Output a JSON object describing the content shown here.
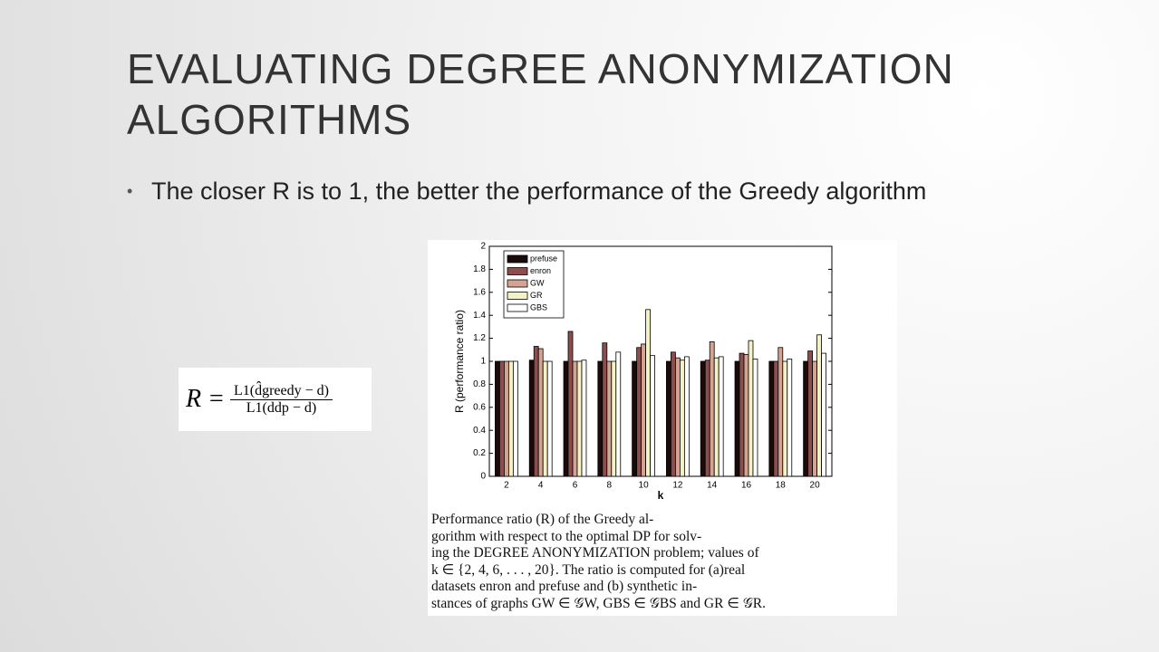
{
  "slide_title": "EVALUATING DEGREE ANONYMIZATION ALGORITHMS",
  "bullet": "The closer R is to 1, the better the performance of the Greedy algorithm",
  "formula": {
    "lhs": "R =",
    "numerator": "L1(d̂greedy − d)",
    "denominator": "L1(ddp − d)"
  },
  "caption_lines": [
    "Performance ratio (R) of the Greedy al-",
    "gorithm with respect to the optimal DP for solv-",
    "ing the DEGREE ANONYMIZATION problem; values of",
    "k ∈ {2, 4, 6, . . . , 20}. The ratio is computed for (a)real",
    "datasets enron and prefuse and (b) synthetic in-",
    "stances of graphs GW ∈ 𝒢W, GBS ∈ 𝒢BS and GR ∈ 𝒢R."
  ],
  "chart_data": {
    "type": "bar",
    "x_label": "k",
    "y_label": "R (performance ratio)",
    "categories": [
      "2",
      "4",
      "6",
      "8",
      "10",
      "12",
      "14",
      "16",
      "18",
      "20"
    ],
    "series": [
      {
        "name": "prefuse",
        "color": "#1a0a0a",
        "values": [
          1.0,
          1.01,
          1.0,
          1.0,
          1.0,
          1.0,
          1.0,
          1.0,
          1.0,
          1.0
        ]
      },
      {
        "name": "enron",
        "color": "#8a4e4e",
        "values": [
          1.0,
          1.13,
          1.26,
          1.16,
          1.12,
          1.08,
          1.01,
          1.07,
          1.0,
          1.09
        ]
      },
      {
        "name": "GW",
        "color": "#d4a391",
        "values": [
          1.0,
          1.11,
          1.0,
          1.0,
          1.15,
          1.03,
          1.17,
          1.06,
          1.12,
          1.0
        ]
      },
      {
        "name": "GR",
        "color": "#f4f2c4",
        "values": [
          1.0,
          1.0,
          1.0,
          1.0,
          1.45,
          1.01,
          1.03,
          1.18,
          1.0,
          1.23
        ]
      },
      {
        "name": "GBS",
        "color": "#ffffff",
        "values": [
          1.0,
          1.0,
          1.01,
          1.08,
          1.05,
          1.04,
          1.04,
          1.02,
          1.02,
          1.07
        ]
      }
    ],
    "ylim": [
      0,
      2
    ],
    "yticks": [
      0,
      0.2,
      0.4,
      0.6,
      0.8,
      1,
      1.2,
      1.4,
      1.6,
      1.8,
      2
    ],
    "legend": "upper left"
  }
}
